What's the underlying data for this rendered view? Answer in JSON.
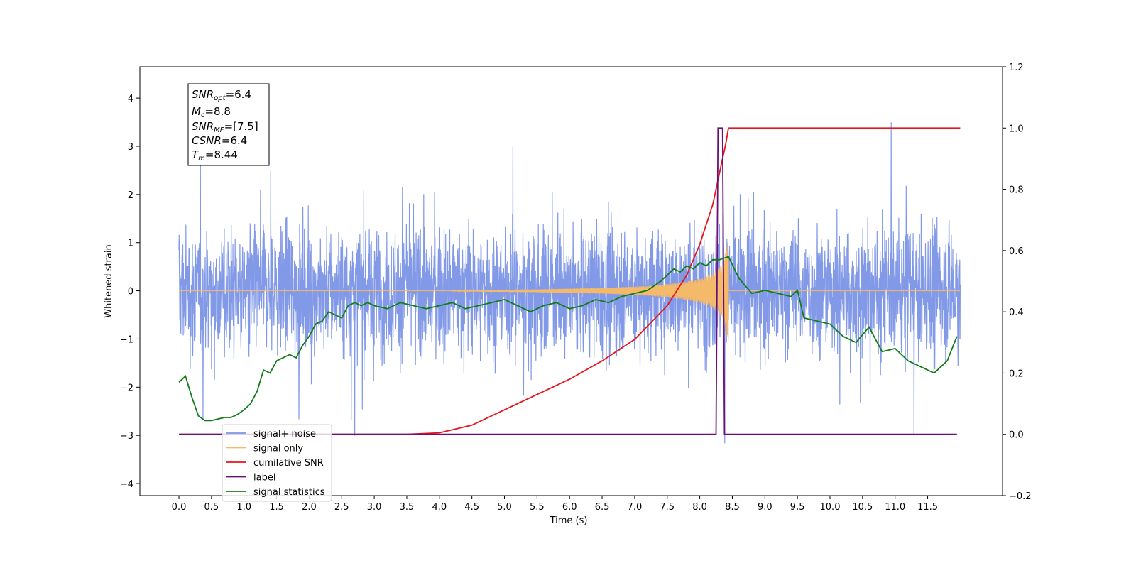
{
  "chart_data": {
    "type": "line",
    "xlabel": "Time (s)",
    "ylabel": "Whitened strain",
    "xlim": [
      -0.6,
      12.65
    ],
    "ylim": [
      -4.25,
      4.65
    ],
    "ylim_right": [
      -0.2,
      1.2
    ],
    "x_ticks": [
      "0.0",
      "0.5",
      "1.0",
      "1.5",
      "2.0",
      "2.5",
      "3.0",
      "3.5",
      "4.0",
      "4.5",
      "5.0",
      "5.5",
      "6.0",
      "6.5",
      "7.0",
      "7.5",
      "8.0",
      "8.5",
      "9.0",
      "9.5",
      "10.0",
      "10.5",
      "11.0",
      "11.5"
    ],
    "y_ticks_left": [
      "4",
      "3",
      "2",
      "1",
      "0",
      "−1",
      "−2",
      "−3",
      "−4"
    ],
    "y_ticks_right": [
      "1.2",
      "1.0",
      "0.8",
      "0.6",
      "0.4",
      "0.2",
      "0.0",
      "−0.2"
    ],
    "legend_position": "lower-left",
    "info_box": [
      {
        "base": "SNR",
        "sub": "opt",
        "value": "=6.4"
      },
      {
        "base": "M",
        "sub": "c",
        "value": "=8.8"
      },
      {
        "base": "SNR",
        "sub": "MF",
        "value": "=[7.5]"
      },
      {
        "base": "CSNR",
        "sub": "",
        "value": "=6.4"
      },
      {
        "base": "T",
        "sub": "m",
        "value": "=8.44"
      }
    ],
    "series": [
      {
        "name": "signal+ noise",
        "axis": "left",
        "color": "#7b94e6",
        "description": "whitened strain noise band, roughly ±1.5 with spikes to ±4 over 0–12 s"
      },
      {
        "name": "signal only",
        "axis": "left",
        "color": "#f5b96a",
        "envelope": {
          "x": [
            4.2,
            5.5,
            6.5,
            7.2,
            7.7,
            8.0,
            8.2,
            8.35,
            8.44
          ],
          "amp": [
            0.01,
            0.03,
            0.06,
            0.1,
            0.17,
            0.25,
            0.35,
            0.55,
            1.1
          ]
        }
      },
      {
        "name": "cumilative SNR",
        "axis": "right",
        "color": "#e8141c",
        "x": [
          0.0,
          3.5,
          4.0,
          4.5,
          5.0,
          5.5,
          6.0,
          6.5,
          7.0,
          7.5,
          7.8,
          8.0,
          8.2,
          8.3,
          8.4,
          8.44,
          11.5,
          12.0
        ],
        "y": [
          0.0,
          0.0,
          0.005,
          0.03,
          0.08,
          0.13,
          0.18,
          0.24,
          0.31,
          0.42,
          0.52,
          0.62,
          0.75,
          0.85,
          0.95,
          1.0,
          1.0,
          1.0
        ]
      },
      {
        "name": "label",
        "axis": "right",
        "color": "#6a0f76",
        "x": [
          0.0,
          8.25,
          8.28,
          8.35,
          8.38,
          8.44,
          11.0,
          11.95
        ],
        "y": [
          0.0,
          0.0,
          1.0,
          1.0,
          0.0,
          0.0,
          0.0,
          0.0
        ]
      },
      {
        "name": "signal statistics",
        "axis": "right",
        "color": "#127d18",
        "x": [
          0.0,
          0.1,
          0.2,
          0.3,
          0.4,
          0.5,
          0.6,
          0.7,
          0.8,
          0.9,
          1.0,
          1.1,
          1.2,
          1.3,
          1.4,
          1.5,
          1.6,
          1.7,
          1.8,
          1.9,
          2.0,
          2.1,
          2.2,
          2.3,
          2.4,
          2.5,
          2.6,
          2.7,
          2.8,
          2.9,
          3.0,
          3.2,
          3.4,
          3.6,
          3.8,
          4.0,
          4.2,
          4.4,
          4.6,
          4.8,
          5.0,
          5.2,
          5.4,
          5.6,
          5.8,
          6.0,
          6.2,
          6.4,
          6.6,
          6.8,
          7.0,
          7.2,
          7.4,
          7.6,
          7.7,
          7.8,
          7.9,
          8.0,
          8.1,
          8.2,
          8.3,
          8.44,
          8.6,
          8.8,
          9.0,
          9.2,
          9.4,
          9.5,
          9.6,
          9.8,
          10.0,
          10.2,
          10.4,
          10.6,
          10.8,
          11.0,
          11.2,
          11.4,
          11.6,
          11.8,
          11.95
        ],
        "y": [
          0.17,
          0.19,
          0.12,
          0.06,
          0.045,
          0.045,
          0.05,
          0.055,
          0.055,
          0.065,
          0.08,
          0.1,
          0.14,
          0.21,
          0.2,
          0.24,
          0.25,
          0.26,
          0.25,
          0.29,
          0.32,
          0.36,
          0.37,
          0.4,
          0.39,
          0.38,
          0.42,
          0.43,
          0.42,
          0.43,
          0.42,
          0.41,
          0.43,
          0.42,
          0.41,
          0.42,
          0.43,
          0.41,
          0.42,
          0.43,
          0.44,
          0.42,
          0.4,
          0.42,
          0.43,
          0.41,
          0.42,
          0.44,
          0.43,
          0.45,
          0.46,
          0.47,
          0.5,
          0.54,
          0.53,
          0.55,
          0.54,
          0.56,
          0.55,
          0.57,
          0.57,
          0.58,
          0.51,
          0.46,
          0.47,
          0.46,
          0.45,
          0.47,
          0.38,
          0.37,
          0.36,
          0.32,
          0.3,
          0.35,
          0.27,
          0.28,
          0.24,
          0.22,
          0.2,
          0.24,
          0.32
        ]
      }
    ]
  }
}
